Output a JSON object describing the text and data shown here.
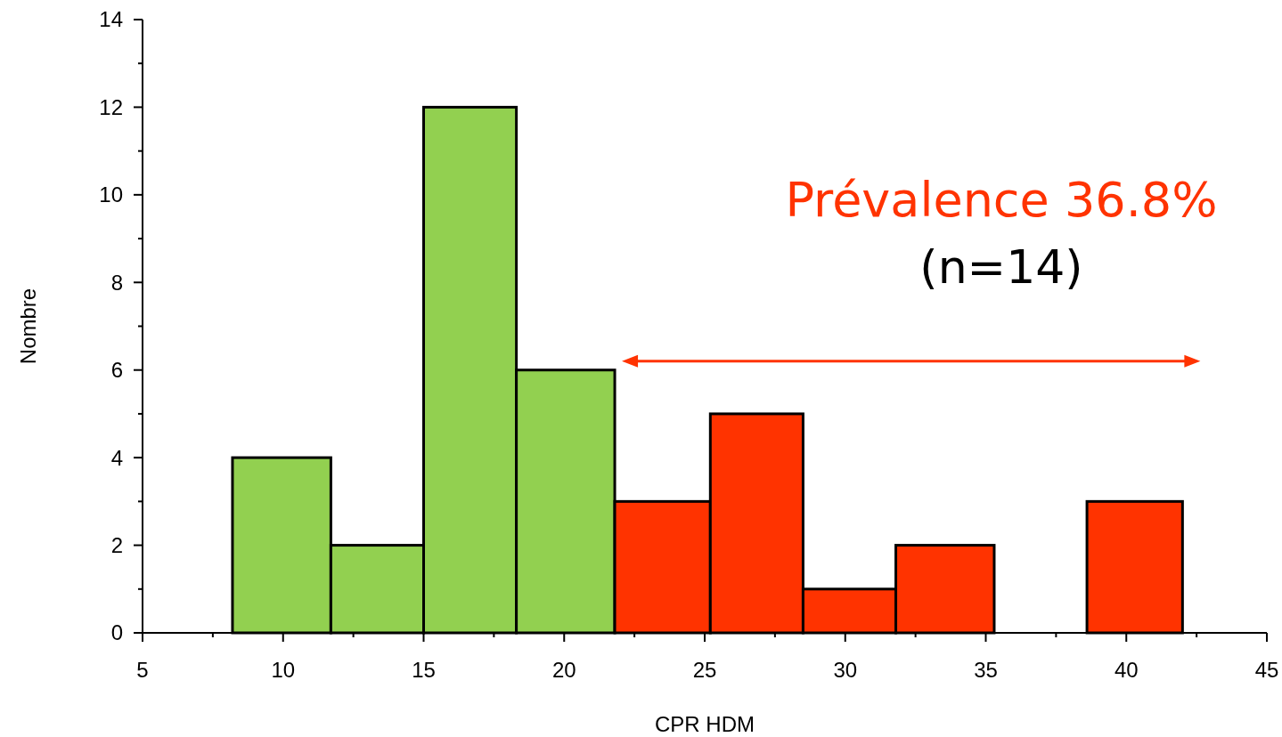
{
  "chart_data": {
    "type": "histogram",
    "xlabel": "CPR HDM",
    "ylabel": "Nombre",
    "bins": [
      8.2,
      11.7,
      15,
      18.3,
      21.8,
      25.2,
      28.5,
      31.8,
      35.3,
      38.6,
      42.0
    ],
    "values": [
      4,
      2,
      12,
      6,
      3,
      5,
      1,
      2,
      0,
      3
    ],
    "colors": [
      "#92d050",
      "#92d050",
      "#92d050",
      "#92d050",
      "#ff3300",
      "#ff3300",
      "#ff3300",
      "#ff3300",
      "#ff3300",
      "#ff3300"
    ],
    "xlim": [
      5,
      45
    ],
    "xticks": [
      5,
      10,
      15,
      20,
      25,
      30,
      35,
      40,
      45
    ],
    "ylim": [
      0,
      14
    ],
    "yticks": [
      0,
      2,
      4,
      6,
      8,
      10,
      12,
      14
    ],
    "grid": false,
    "annotations": [
      "Prévalence 36.8%",
      "(n=14)"
    ]
  }
}
